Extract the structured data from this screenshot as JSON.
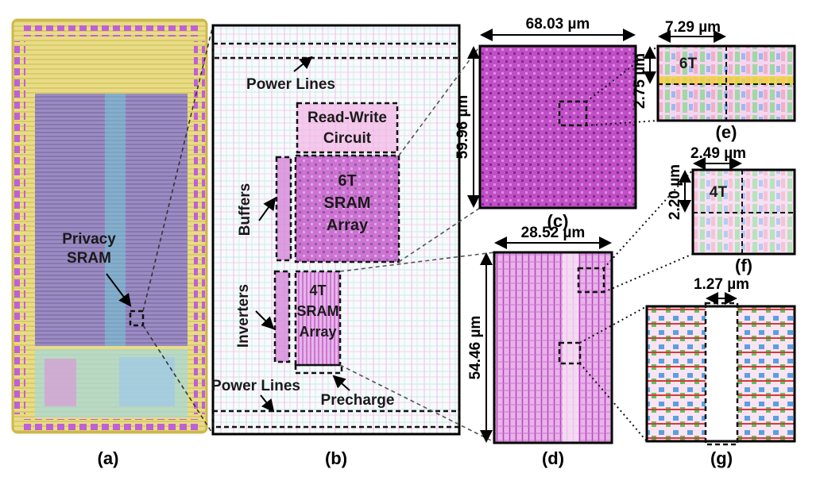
{
  "colors": {
    "chip_gold": "#d9c96a",
    "chip_pad": "#c060d8",
    "chip_core": "#8e7fb8",
    "sram_magenta": "#cc55cc",
    "layout_cyan": "#8fd8e8",
    "layout_pink": "#f0a8d8",
    "cell_red": "#e04040",
    "cell_blue": "#3040c0",
    "cell_green": "#40b040"
  },
  "panel_a": {
    "label": "(a)",
    "callout_line1": "Privacy",
    "callout_line2": "SRAM"
  },
  "panel_b": {
    "label": "(b)",
    "power_lines_top": "Power Lines",
    "rw_line1": "Read-Write",
    "rw_line2": "Circuit",
    "six_t_line1": "6T",
    "six_t_line2": "SRAM",
    "six_t_line3": "Array",
    "buffers": "Buffers",
    "inverters": "Inverters",
    "four_t_line1": "4T",
    "four_t_line2": "SRAM",
    "four_t_line3": "Array",
    "precharge": "Precharge",
    "power_lines_bottom": "Power Lines"
  },
  "panel_c": {
    "label": "(c)",
    "width": "68.03 µm",
    "height": "59.96 µm"
  },
  "panel_d": {
    "label": "(d)",
    "width": "28.52 µm",
    "height": "54.46 µm"
  },
  "panel_e": {
    "label": "(e)",
    "width": "7.29 µm",
    "height": "2.75 µm",
    "cell": "6T"
  },
  "panel_f": {
    "label": "(f)",
    "width": "2.49 µm",
    "height": "2.20 µm",
    "cell": "4T"
  },
  "panel_g": {
    "label": "(g)",
    "width": "1.27 µm"
  }
}
